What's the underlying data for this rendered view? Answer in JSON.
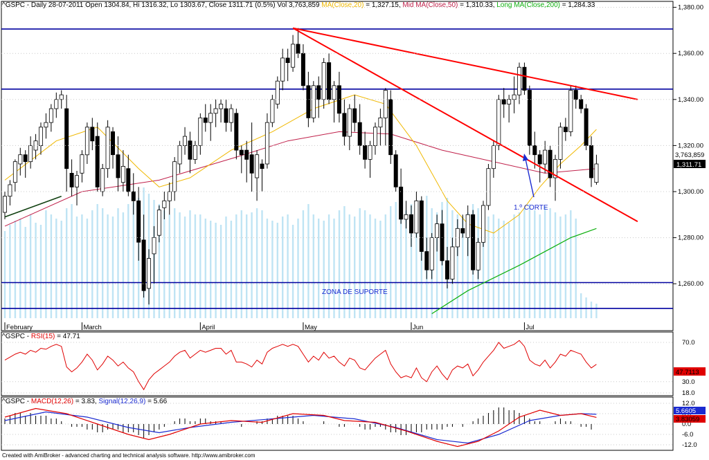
{
  "footer": "Created with AmiBroker - advanced charting and technical analysis software. http://www.amibroker.com",
  "colors": {
    "ma20": "#f0b800",
    "ma50": "#c0204a",
    "ma200": "#10b010",
    "volume": "#bfe4f4",
    "trend": "#ff0000",
    "hline": "#0000a0",
    "rsi": "#e00000",
    "macd": "#e00000",
    "signal": "#1a2ad0"
  },
  "price_panel": {
    "header": {
      "title": "^GSPC - Daily 28-07-2011 Open 1304.84, Hi 1316.32, Lo 1303.67, Close 1311.71 (0.5%) Vol 3,763,859",
      "ma20": "MA(Close,20)",
      "ma20_value": "= 1,327.15,",
      "ma50": "Mid MA(Close,50)",
      "ma50_value": "= 1,310.33,",
      "ma200": "Long MA(Close,200)",
      "ma200_value": "= 1,284.33"
    },
    "y_ticks": [
      "1,380.00",
      "1,360.00",
      "1,340.00",
      "1,320.00",
      "1,300.00",
      "1,280.00",
      "1,260.00"
    ],
    "y_values": [
      1380,
      1360,
      1340,
      1320,
      1300,
      1280,
      1260
    ],
    "volume_label": "3,763,859",
    "close_label": "1,311.71",
    "annotation_corte": "1.º CORTE",
    "annotation_suporte": "ZONA DE SUPORTE",
    "h_lines": [
      1370.6,
      1344.5,
      1260.5,
      1249.3
    ]
  },
  "x_labels": [
    "February",
    "March",
    "April",
    "May",
    "Jun",
    "Jul"
  ],
  "rsi_panel": {
    "header_prefix": "^GSPC - ",
    "label": "RSI(15)",
    "value": "= 47.71",
    "y_ticks": [
      "70.0",
      "30.0"
    ],
    "last_label": "47.7113"
  },
  "macd_panel": {
    "header_prefix": "^GSPC - ",
    "macd_label": "MACD(12,26)",
    "macd_value": "= 3.83,",
    "signal_label": "Signal(12,26,9)",
    "signal_value": "= 5.66",
    "y_ticks": [
      "18.0",
      "12.0",
      "6.0",
      "0.0",
      "-6.0",
      "-12.0"
    ],
    "signal_box": "5.6605",
    "macd_box": "3.83059"
  },
  "chart_data": {
    "type": "candlestick",
    "title": "^GSPC - Daily 28-07-2011",
    "ylim": [
      1247,
      1383
    ],
    "x_axis": "trading days 1 Feb 2011 – 28 Jul 2011",
    "candles": [
      [
        1291,
        1300,
        1288,
        1298
      ],
      [
        1298,
        1305,
        1294,
        1303
      ],
      [
        1304,
        1314,
        1300,
        1313
      ],
      [
        1312,
        1319,
        1307,
        1316
      ],
      [
        1316,
        1318,
        1306,
        1313
      ],
      [
        1313,
        1324,
        1310,
        1320
      ],
      [
        1318,
        1325,
        1314,
        1322
      ],
      [
        1320,
        1330,
        1316,
        1328
      ],
      [
        1328,
        1334,
        1323,
        1330
      ],
      [
        1330,
        1338,
        1326,
        1336
      ],
      [
        1336,
        1343,
        1332,
        1340
      ],
      [
        1340,
        1344,
        1336,
        1342
      ],
      [
        1336,
        1342,
        1300,
        1310
      ],
      [
        1308,
        1314,
        1298,
        1302
      ],
      [
        1302,
        1309,
        1294,
        1307
      ],
      [
        1308,
        1318,
        1304,
        1316
      ],
      [
        1316,
        1330,
        1312,
        1328
      ],
      [
        1328,
        1332,
        1318,
        1322
      ],
      [
        1324,
        1330,
        1300,
        1302
      ],
      [
        1300,
        1312,
        1298,
        1310
      ],
      [
        1310,
        1331,
        1306,
        1328
      ],
      [
        1326,
        1328,
        1310,
        1316
      ],
      [
        1316,
        1324,
        1300,
        1306
      ],
      [
        1304,
        1318,
        1300,
        1311
      ],
      [
        1310,
        1316,
        1298,
        1300
      ],
      [
        1300,
        1308,
        1290,
        1296
      ],
      [
        1296,
        1302,
        1270,
        1278
      ],
      [
        1279,
        1290,
        1254,
        1257
      ],
      [
        1258,
        1275,
        1251,
        1271
      ],
      [
        1273,
        1285,
        1260,
        1280
      ],
      [
        1281,
        1294,
        1278,
        1292
      ],
      [
        1293,
        1300,
        1288,
        1296
      ],
      [
        1296,
        1304,
        1290,
        1300
      ],
      [
        1300,
        1315,
        1296,
        1313
      ],
      [
        1312,
        1322,
        1308,
        1320
      ],
      [
        1320,
        1328,
        1316,
        1324
      ],
      [
        1322,
        1326,
        1308,
        1314
      ],
      [
        1314,
        1322,
        1312,
        1320
      ],
      [
        1320,
        1334,
        1316,
        1332
      ],
      [
        1332,
        1338,
        1326,
        1330
      ],
      [
        1330,
        1338,
        1322,
        1334
      ],
      [
        1334,
        1340,
        1328,
        1336
      ],
      [
        1336,
        1340,
        1330,
        1338
      ],
      [
        1336,
        1340,
        1326,
        1330
      ],
      [
        1330,
        1338,
        1326,
        1336
      ],
      [
        1334,
        1336,
        1314,
        1318
      ],
      [
        1318,
        1320,
        1308,
        1316
      ],
      [
        1318,
        1322,
        1304,
        1314
      ],
      [
        1316,
        1330,
        1300,
        1308
      ],
      [
        1306,
        1318,
        1296,
        1316
      ],
      [
        1312,
        1314,
        1300,
        1310
      ],
      [
        1312,
        1334,
        1310,
        1330
      ],
      [
        1330,
        1342,
        1328,
        1340
      ],
      [
        1338,
        1350,
        1336,
        1348
      ],
      [
        1348,
        1362,
        1344,
        1358
      ],
      [
        1358,
        1362,
        1348,
        1356
      ],
      [
        1354,
        1368,
        1352,
        1364
      ],
      [
        1364,
        1371,
        1358,
        1360
      ],
      [
        1360,
        1364,
        1344,
        1346
      ],
      [
        1346,
        1352,
        1328,
        1332
      ],
      [
        1332,
        1348,
        1330,
        1346
      ],
      [
        1346,
        1350,
        1332,
        1340
      ],
      [
        1340,
        1358,
        1336,
        1356
      ],
      [
        1356,
        1360,
        1338,
        1340
      ],
      [
        1340,
        1348,
        1330,
        1346
      ],
      [
        1346,
        1352,
        1330,
        1334
      ],
      [
        1334,
        1340,
        1320,
        1324
      ],
      [
        1324,
        1338,
        1318,
        1336
      ],
      [
        1336,
        1342,
        1326,
        1330
      ],
      [
        1330,
        1338,
        1316,
        1320
      ],
      [
        1320,
        1326,
        1310,
        1314
      ],
      [
        1314,
        1322,
        1306,
        1320
      ],
      [
        1320,
        1330,
        1316,
        1328
      ],
      [
        1328,
        1336,
        1320,
        1332
      ],
      [
        1332,
        1345,
        1320,
        1344
      ],
      [
        1340,
        1344,
        1312,
        1316
      ],
      [
        1316,
        1318,
        1300,
        1302
      ],
      [
        1302,
        1310,
        1286,
        1288
      ],
      [
        1288,
        1296,
        1284,
        1290
      ],
      [
        1290,
        1294,
        1276,
        1282
      ],
      [
        1282,
        1300,
        1280,
        1296
      ],
      [
        1296,
        1298,
        1270,
        1274
      ],
      [
        1274,
        1280,
        1262,
        1266
      ],
      [
        1266,
        1282,
        1262,
        1280
      ],
      [
        1280,
        1290,
        1274,
        1286
      ],
      [
        1286,
        1292,
        1268,
        1270
      ],
      [
        1270,
        1276,
        1258,
        1262
      ],
      [
        1262,
        1280,
        1260,
        1276
      ],
      [
        1276,
        1288,
        1272,
        1284
      ],
      [
        1284,
        1290,
        1280,
        1282
      ],
      [
        1280,
        1294,
        1272,
        1290
      ],
      [
        1290,
        1292,
        1264,
        1266
      ],
      [
        1266,
        1280,
        1262,
        1278
      ],
      [
        1278,
        1296,
        1276,
        1294
      ],
      [
        1294,
        1312,
        1292,
        1310
      ],
      [
        1310,
        1322,
        1306,
        1320
      ],
      [
        1320,
        1342,
        1318,
        1340
      ],
      [
        1340,
        1345,
        1332,
        1338
      ],
      [
        1338,
        1342,
        1330,
        1340
      ],
      [
        1340,
        1350,
        1334,
        1342
      ],
      [
        1342,
        1356,
        1338,
        1354
      ],
      [
        1354,
        1356,
        1342,
        1344
      ],
      [
        1344,
        1346,
        1316,
        1320
      ],
      [
        1320,
        1326,
        1310,
        1316
      ],
      [
        1316,
        1318,
        1304,
        1312
      ],
      [
        1312,
        1322,
        1308,
        1318
      ],
      [
        1318,
        1320,
        1302,
        1306
      ],
      [
        1306,
        1316,
        1296,
        1314
      ],
      [
        1314,
        1330,
        1310,
        1328
      ],
      [
        1328,
        1332,
        1322,
        1326
      ],
      [
        1326,
        1346,
        1324,
        1344
      ],
      [
        1344,
        1346,
        1336,
        1340
      ],
      [
        1340,
        1342,
        1334,
        1336
      ],
      [
        1336,
        1338,
        1318,
        1320
      ],
      [
        1320,
        1324,
        1302,
        1306
      ],
      [
        1304,
        1316,
        1303,
        1312
      ]
    ],
    "ma20": [
      [
        0,
        1305
      ],
      [
        10,
        1322
      ],
      [
        18,
        1328
      ],
      [
        26,
        1310
      ],
      [
        30,
        1302
      ],
      [
        36,
        1306
      ],
      [
        44,
        1318
      ],
      [
        52,
        1326
      ],
      [
        60,
        1336
      ],
      [
        68,
        1342
      ],
      [
        74,
        1338
      ],
      [
        80,
        1320
      ],
      [
        86,
        1296
      ],
      [
        90,
        1286
      ],
      [
        95,
        1282
      ],
      [
        100,
        1290
      ],
      [
        104,
        1302
      ],
      [
        108,
        1312
      ],
      [
        112,
        1320
      ],
      [
        115,
        1327
      ]
    ],
    "ma50": [
      [
        0,
        1285
      ],
      [
        15,
        1300
      ],
      [
        30,
        1305
      ],
      [
        45,
        1315
      ],
      [
        55,
        1322
      ],
      [
        65,
        1326
      ],
      [
        75,
        1325
      ],
      [
        85,
        1318
      ],
      [
        95,
        1313
      ],
      [
        105,
        1308
      ],
      [
        115,
        1310
      ]
    ],
    "ma200": [
      [
        83,
        1247
      ],
      [
        90,
        1257
      ],
      [
        100,
        1268
      ],
      [
        110,
        1280
      ],
      [
        115,
        1284
      ]
    ],
    "trend_lines": [
      {
        "from": [
          56,
          1371
        ],
        "to": [
          123,
          1340
        ]
      },
      {
        "from": [
          56,
          1371
        ],
        "to": [
          123,
          1287
        ]
      },
      {
        "from": [
          0,
          1289
        ],
        "to": [
          11,
          1298
        ]
      }
    ],
    "volume_level": [
      0.42,
      0.45,
      0.47,
      0.48,
      0.44,
      0.5,
      0.46,
      0.45,
      0.52,
      0.5,
      0.48,
      0.47,
      0.53,
      0.55,
      0.49,
      0.5,
      0.48,
      0.52,
      0.55,
      0.53,
      0.5,
      0.49,
      0.53,
      0.51,
      0.55,
      0.56,
      0.58,
      0.63,
      0.6,
      0.57,
      0.55,
      0.52,
      0.5,
      0.53,
      0.51,
      0.49,
      0.52,
      0.5,
      0.5,
      0.48,
      0.47,
      0.46,
      0.45,
      0.49,
      0.47,
      0.5,
      0.52,
      0.5,
      0.51,
      0.53,
      0.52,
      0.48,
      0.47,
      0.46,
      0.49,
      0.5,
      0.45,
      0.48,
      0.52,
      0.55,
      0.5,
      0.48,
      0.47,
      0.5,
      0.48,
      0.52,
      0.54,
      0.5,
      0.49,
      0.53,
      0.52,
      0.5,
      0.48,
      0.47,
      0.5,
      0.54,
      0.56,
      0.58,
      0.52,
      0.55,
      0.5,
      0.57,
      0.59,
      0.53,
      0.51,
      0.56,
      0.58,
      0.52,
      0.5,
      0.49,
      0.51,
      0.55,
      0.53,
      0.5,
      0.49,
      0.5,
      0.48,
      0.47,
      0.46,
      0.5,
      0.51,
      0.53,
      0.55,
      0.52,
      0.5,
      0.54,
      0.53,
      0.51,
      0.49,
      0.5,
      0.52,
      0.48,
      0.12,
      0.1,
      0.08,
      0.07
    ],
    "rsi": [
      52,
      55,
      58,
      60,
      58,
      62,
      60,
      64,
      63,
      66,
      68,
      66,
      45,
      40,
      44,
      50,
      58,
      52,
      42,
      48,
      56,
      52,
      46,
      50,
      44,
      40,
      30,
      22,
      32,
      38,
      42,
      46,
      50,
      56,
      60,
      62,
      54,
      58,
      62,
      60,
      62,
      64,
      64,
      58,
      62,
      50,
      50,
      48,
      45,
      52,
      48,
      60,
      64,
      66,
      68,
      66,
      68,
      66,
      58,
      50,
      56,
      52,
      60,
      54,
      56,
      50,
      46,
      54,
      52,
      44,
      42,
      48,
      54,
      58,
      62,
      48,
      40,
      34,
      36,
      34,
      44,
      34,
      30,
      40,
      46,
      38,
      32,
      42,
      46,
      44,
      48,
      36,
      42,
      50,
      56,
      62,
      70,
      64,
      66,
      68,
      72,
      66,
      52,
      48,
      46,
      52,
      44,
      50,
      58,
      56,
      62,
      60,
      58,
      50,
      44,
      47.71
    ],
    "macd": [
      [
        0,
        4
      ],
      [
        6,
        9
      ],
      [
        12,
        6
      ],
      [
        18,
        0
      ],
      [
        24,
        -6
      ],
      [
        28,
        -9
      ],
      [
        32,
        -6
      ],
      [
        38,
        0
      ],
      [
        44,
        2
      ],
      [
        50,
        1
      ],
      [
        56,
        6
      ],
      [
        62,
        5
      ],
      [
        66,
        2
      ],
      [
        72,
        1
      ],
      [
        78,
        -4
      ],
      [
        84,
        -10
      ],
      [
        88,
        -13
      ],
      [
        92,
        -10
      ],
      [
        96,
        -4
      ],
      [
        100,
        4
      ],
      [
        104,
        8
      ],
      [
        108,
        5
      ],
      [
        112,
        6
      ],
      [
        115,
        3.83
      ]
    ],
    "signal": [
      [
        0,
        2
      ],
      [
        8,
        7
      ],
      [
        16,
        4
      ],
      [
        24,
        -2
      ],
      [
        30,
        -5
      ],
      [
        36,
        -2
      ],
      [
        44,
        1
      ],
      [
        52,
        3
      ],
      [
        60,
        5
      ],
      [
        68,
        3
      ],
      [
        76,
        -2
      ],
      [
        84,
        -9
      ],
      [
        90,
        -11
      ],
      [
        96,
        -6
      ],
      [
        102,
        2
      ],
      [
        108,
        5
      ],
      [
        112,
        6
      ],
      [
        115,
        5.66
      ]
    ],
    "macd_hist": [
      2,
      3,
      4,
      4,
      3,
      4,
      3,
      3,
      3,
      2,
      2,
      1,
      0,
      -1,
      -1,
      -1,
      -2,
      -2,
      -3,
      -3,
      -2,
      -2,
      -2,
      -3,
      -3,
      -3,
      -4,
      -5,
      -4,
      -3,
      -2,
      -1,
      0,
      1,
      2,
      2,
      1,
      1,
      2,
      2,
      1,
      1,
      1,
      0,
      0,
      0,
      -1,
      0,
      0,
      1,
      1,
      2,
      2,
      3,
      3,
      3,
      3,
      2,
      1,
      0,
      0,
      0,
      1,
      0,
      0,
      -1,
      -1,
      0,
      0,
      -1,
      -2,
      -2,
      -1,
      -1,
      -2,
      -3,
      -3,
      -4,
      -4,
      -3,
      -3,
      -3,
      -2,
      -2,
      -2,
      -2,
      -1,
      -1,
      0,
      -1,
      0,
      1,
      2,
      3,
      4,
      5,
      6,
      6,
      5,
      5,
      4,
      3,
      2,
      1,
      1,
      0,
      0,
      1,
      2,
      1,
      1,
      0,
      -1,
      -1,
      -2
    ]
  }
}
